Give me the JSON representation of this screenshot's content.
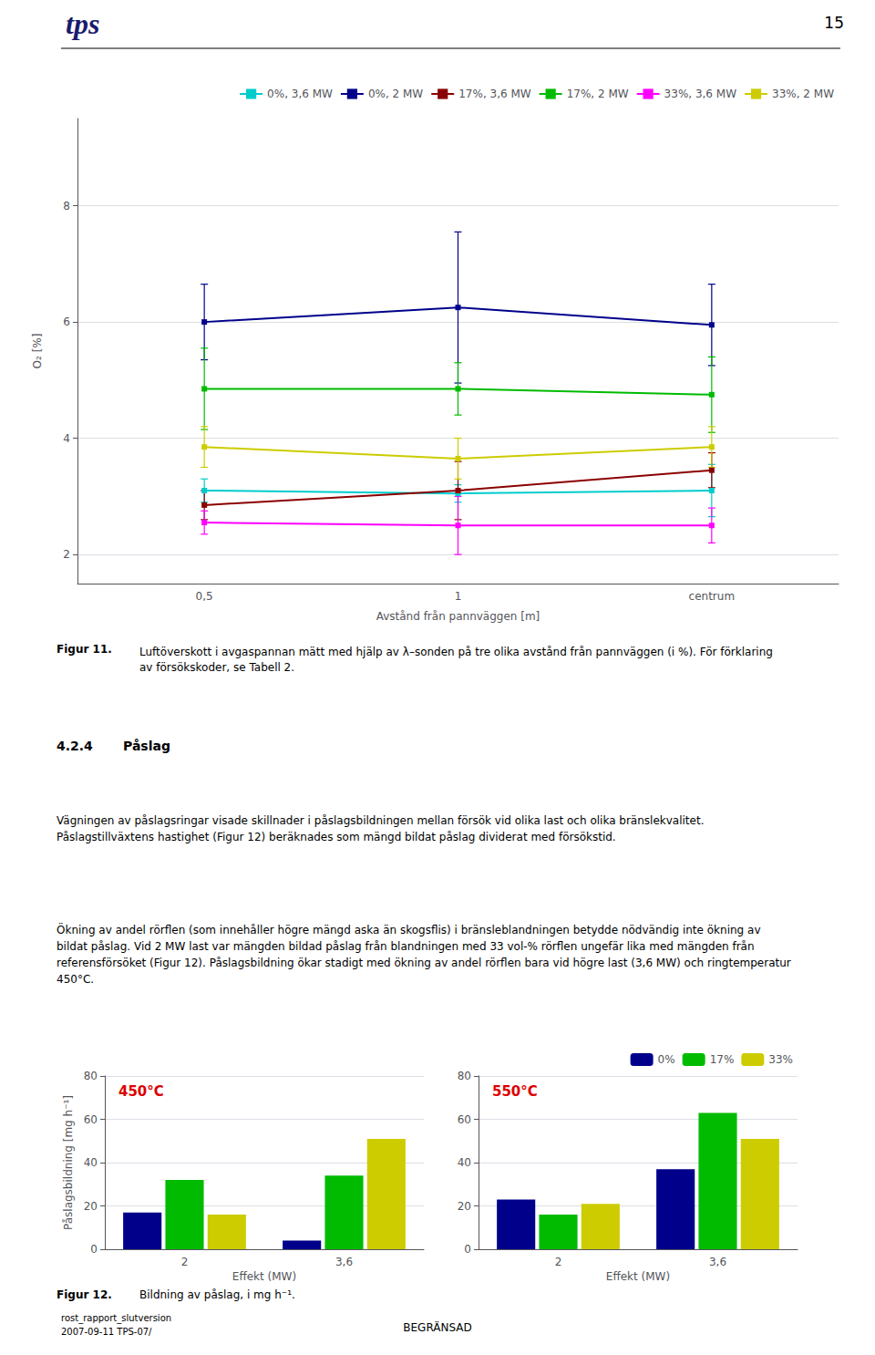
{
  "page": {
    "logo_text": "tps",
    "page_number": "15",
    "fig11_caption_bold": "Figur 11.",
    "fig11_caption": "Luftöverskott i avgaspannan mätt med hjälp av λ–sonden på tre olika avstånd från pannväggen (i %). För förklaring av försökskoder, se Tabell 2.",
    "section_heading_num": "4.2.4",
    "section_heading_title": "Påslag",
    "paragraph1": "Vägningen av påslagsringar visade skillnader i påslagsbildningen mellan försök vid olika last och olika bränslekvalitet. Påslagstillväxtens hastighet (Figur 12) beräknades som mängd bildat påslag dividerat med försökstid.",
    "paragraph2": "Ökning av andel rörflen (som innehåller högre mängd aska än skogsflis) i bränsleblandningen betydde nödvändig inte ökning av bildat påslag. Vid 2 MW last var mängden bildad påslag från blandningen med 33 vol-% rörflen ungefär lika med mängden från referensförsöket (Figur 12). Påslagsbildning ökar stadigt med ökning av andel rörflen bara vid högre last (3,6 MW) och ringtemperatur 450°C.",
    "fig12_caption_bold": "Figur 12.",
    "fig12_caption": "Bildning av påslag, i mg h⁻¹.",
    "footer_left_line1": "rost_rapport_slutversion",
    "footer_left_line2": "2007-09-11 TPS-07/",
    "footer_center": "BEGRÄNSAD"
  },
  "chart_data": [
    {
      "type": "line",
      "categories": [
        "0,5",
        "1",
        "centrum"
      ],
      "xlabel": "Avstånd från pannväggen [m]",
      "ylabel": "O₂ [%]",
      "ylim": [
        1.5,
        9.5
      ],
      "yticks": [
        2,
        4,
        6,
        8
      ],
      "grid": true,
      "legend": "upper right",
      "marker": "square",
      "series": [
        {
          "name": "0%, 3,6 MW",
          "color": "#00cccc",
          "values": [
            3.1,
            3.05,
            3.1
          ],
          "yerr": [
            0.2,
            0.15,
            0.45
          ]
        },
        {
          "name": "0%, 2 MW",
          "color": "#00008b",
          "values": [
            6.0,
            6.25,
            5.95
          ],
          "yerr": [
            0.65,
            1.3,
            0.7
          ]
        },
        {
          "name": "17%, 3,6 MW",
          "color": "#8b0000",
          "values": [
            2.85,
            3.1,
            3.45
          ],
          "yerr": [
            0.25,
            0.5,
            0.3
          ]
        },
        {
          "name": "17%, 2 MW",
          "color": "#00bb00",
          "values": [
            4.85,
            4.85,
            4.75
          ],
          "yerr": [
            0.7,
            0.45,
            0.65
          ]
        },
        {
          "name": "33%, 3,6 MW",
          "color": "#ff00ff",
          "values": [
            2.55,
            2.5,
            2.5
          ],
          "yerr": [
            0.2,
            0.5,
            0.3
          ]
        },
        {
          "name": "33%, 2 MW",
          "color": "#cccc00",
          "values": [
            3.85,
            3.65,
            3.85
          ],
          "yerr": [
            0.35,
            0.35,
            0.35
          ]
        }
      ]
    },
    {
      "type": "bar",
      "title": "450°C",
      "categories": [
        "2",
        "3,6"
      ],
      "xlabel": "Effekt (MW)",
      "ylabel": "Påslagsbildning [mg h⁻¹]",
      "ylim": [
        0,
        80
      ],
      "yticks": [
        0,
        20,
        40,
        60,
        80
      ],
      "grid": true,
      "series": [
        {
          "name": "0%",
          "color": "#00008b",
          "values": [
            17,
            4
          ]
        },
        {
          "name": "17%",
          "color": "#00bb00",
          "values": [
            32,
            34
          ]
        },
        {
          "name": "33%",
          "color": "#cccc00",
          "values": [
            16,
            51
          ]
        }
      ]
    },
    {
      "type": "bar",
      "title": "550°C",
      "categories": [
        "2",
        "3,6"
      ],
      "xlabel": "Effekt (MW)",
      "ylim": [
        0,
        80
      ],
      "yticks": [
        0,
        20,
        40,
        60,
        80
      ],
      "grid": true,
      "legend": "upper right",
      "series": [
        {
          "name": "0%",
          "color": "#00008b",
          "values": [
            23,
            37
          ]
        },
        {
          "name": "17%",
          "color": "#00bb00",
          "values": [
            16,
            63
          ]
        },
        {
          "name": "33%",
          "color": "#cccc00",
          "values": [
            21,
            51
          ]
        }
      ]
    }
  ]
}
